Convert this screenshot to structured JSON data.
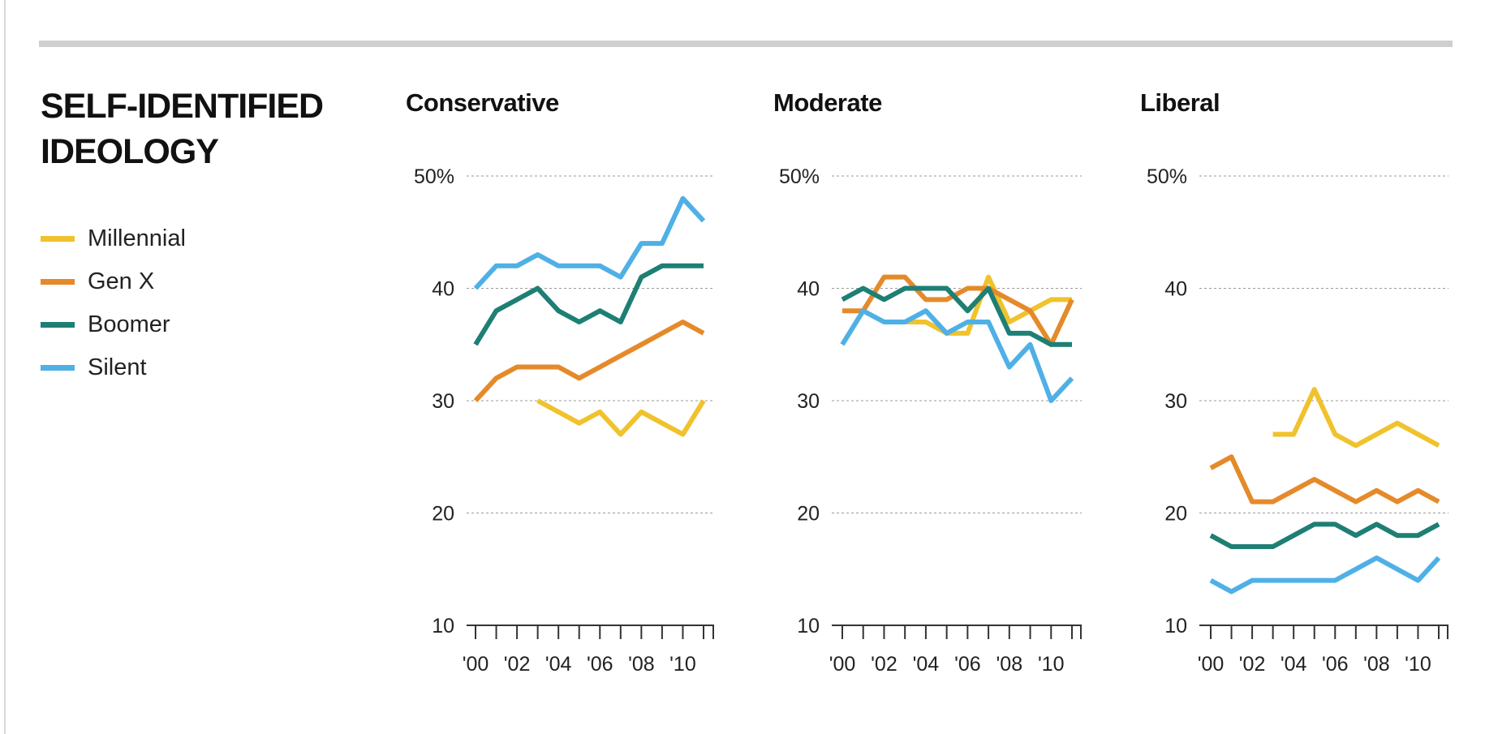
{
  "header": {
    "title_line1": "SELF-IDENTIFIED",
    "title_line2": "IDEOLOGY"
  },
  "legend": [
    {
      "label": "Millennial",
      "color": "#f0c22c"
    },
    {
      "label": "Gen X",
      "color": "#e58a2a"
    },
    {
      "label": "Boomer",
      "color": "#1e7f74"
    },
    {
      "label": "Silent",
      "color": "#4fb0e6"
    }
  ],
  "chart_data": [
    {
      "type": "line",
      "title": "Conservative",
      "x": [
        2000,
        2001,
        2002,
        2003,
        2004,
        2005,
        2006,
        2007,
        2008,
        2009,
        2010,
        2011
      ],
      "x_tick_labels": [
        "'00",
        "'02",
        "'04",
        "'06",
        "'08",
        "'10"
      ],
      "y_tick_labels": [
        "50%",
        "40",
        "30",
        "20",
        "10"
      ],
      "ylim": [
        10,
        50
      ],
      "series": [
        {
          "name": "Millennial",
          "color": "#f0c22c",
          "values": [
            null,
            null,
            null,
            30,
            29,
            28,
            29,
            27,
            29,
            28,
            27,
            30
          ]
        },
        {
          "name": "Gen X",
          "color": "#e58a2a",
          "values": [
            30,
            32,
            33,
            33,
            33,
            32,
            33,
            34,
            35,
            36,
            37,
            36
          ]
        },
        {
          "name": "Boomer",
          "color": "#1e7f74",
          "values": [
            35,
            38,
            39,
            40,
            38,
            37,
            38,
            37,
            41,
            42,
            42,
            42
          ]
        },
        {
          "name": "Silent",
          "color": "#4fb0e6",
          "values": [
            40,
            42,
            42,
            43,
            42,
            42,
            42,
            41,
            44,
            44,
            48,
            46
          ]
        }
      ]
    },
    {
      "type": "line",
      "title": "Moderate",
      "x": [
        2000,
        2001,
        2002,
        2003,
        2004,
        2005,
        2006,
        2007,
        2008,
        2009,
        2010,
        2011
      ],
      "x_tick_labels": [
        "'00",
        "'02",
        "'04",
        "'06",
        "'08",
        "'10"
      ],
      "y_tick_labels": [
        "50%",
        "40",
        "30",
        "20",
        "10"
      ],
      "ylim": [
        10,
        50
      ],
      "series": [
        {
          "name": "Millennial",
          "color": "#f0c22c",
          "values": [
            null,
            null,
            null,
            37,
            37,
            36,
            36,
            41,
            37,
            38,
            39,
            39
          ]
        },
        {
          "name": "Gen X",
          "color": "#e58a2a",
          "values": [
            38,
            38,
            41,
            41,
            39,
            39,
            40,
            40,
            39,
            38,
            35,
            39
          ]
        },
        {
          "name": "Boomer",
          "color": "#1e7f74",
          "values": [
            39,
            40,
            39,
            40,
            40,
            40,
            38,
            40,
            36,
            36,
            35,
            35
          ]
        },
        {
          "name": "Silent",
          "color": "#4fb0e6",
          "values": [
            35,
            38,
            37,
            37,
            38,
            36,
            37,
            37,
            33,
            35,
            30,
            32
          ]
        }
      ]
    },
    {
      "type": "line",
      "title": "Liberal",
      "x": [
        2000,
        2001,
        2002,
        2003,
        2004,
        2005,
        2006,
        2007,
        2008,
        2009,
        2010,
        2011
      ],
      "x_tick_labels": [
        "'00",
        "'02",
        "'04",
        "'06",
        "'08",
        "'10"
      ],
      "y_tick_labels": [
        "50%",
        "40",
        "30",
        "20",
        "10"
      ],
      "ylim": [
        10,
        50
      ],
      "series": [
        {
          "name": "Millennial",
          "color": "#f0c22c",
          "values": [
            null,
            null,
            null,
            27,
            27,
            31,
            27,
            26,
            27,
            28,
            27,
            26
          ]
        },
        {
          "name": "Gen X",
          "color": "#e58a2a",
          "values": [
            24,
            25,
            21,
            21,
            22,
            23,
            22,
            21,
            22,
            21,
            22,
            21
          ]
        },
        {
          "name": "Boomer",
          "color": "#1e7f74",
          "values": [
            18,
            17,
            17,
            17,
            18,
            19,
            19,
            18,
            19,
            18,
            18,
            19
          ]
        },
        {
          "name": "Silent",
          "color": "#4fb0e6",
          "values": [
            14,
            13,
            14,
            14,
            14,
            14,
            14,
            15,
            16,
            15,
            14,
            16
          ]
        }
      ]
    }
  ]
}
